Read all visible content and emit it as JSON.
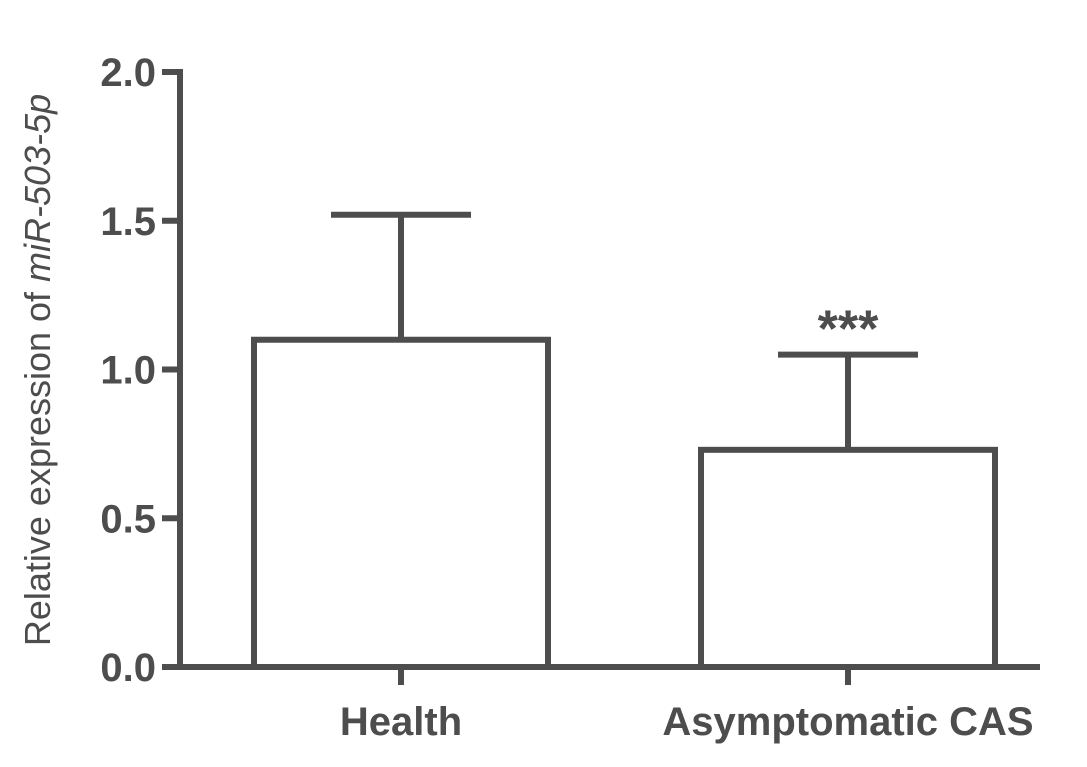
{
  "chart_data": {
    "type": "bar",
    "categories": [
      "Health",
      "Asymptomatic CAS"
    ],
    "values": [
      1.1,
      0.73
    ],
    "errors": [
      0.42,
      0.32
    ],
    "annotations": [
      "",
      "***"
    ],
    "ylabel_prefix": "Relative expression of ",
    "ylabel_gene": "miR-503-5p",
    "ylim": [
      0,
      2.0
    ],
    "yticks": [
      "0.0",
      "0.5",
      "1.0",
      "1.5",
      "2.0"
    ],
    "ytick_values": [
      0,
      0.5,
      1.0,
      1.5,
      2.0
    ],
    "grid": false,
    "colors": {
      "stroke": "#4d4d4d",
      "fill": "#ffffff"
    }
  }
}
